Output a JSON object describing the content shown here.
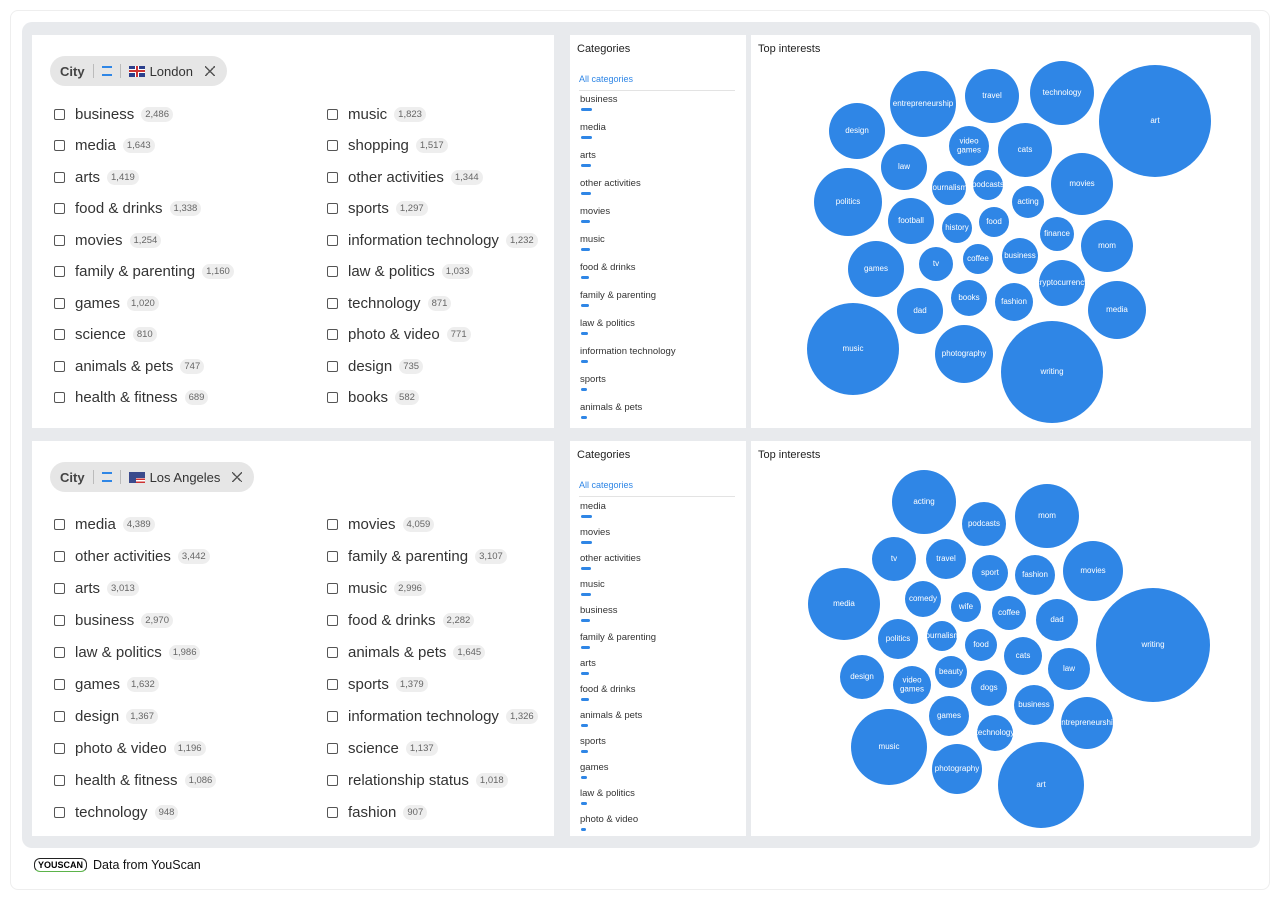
{
  "panels": [
    {
      "filter": {
        "label": "City",
        "value": "London"
      },
      "columns": [
        [
          {
            "name": "business",
            "count": "2,486"
          },
          {
            "name": "media",
            "count": "1,643"
          },
          {
            "name": "arts",
            "count": "1,419"
          },
          {
            "name": "food & drinks",
            "count": "1,338"
          },
          {
            "name": "movies",
            "count": "1,254"
          },
          {
            "name": "family & parenting",
            "count": "1,160"
          },
          {
            "name": "games",
            "count": "1,020"
          },
          {
            "name": "science",
            "count": "810"
          },
          {
            "name": "animals & pets",
            "count": "747"
          },
          {
            "name": "health & fitness",
            "count": "689"
          }
        ],
        [
          {
            "name": "music",
            "count": "1,823"
          },
          {
            "name": "shopping",
            "count": "1,517"
          },
          {
            "name": "other activities",
            "count": "1,344"
          },
          {
            "name": "sports",
            "count": "1,297"
          },
          {
            "name": "information technology",
            "count": "1,232"
          },
          {
            "name": "law & politics",
            "count": "1,033"
          },
          {
            "name": "technology",
            "count": "871"
          },
          {
            "name": "photo & video",
            "count": "771"
          },
          {
            "name": "design",
            "count": "735"
          },
          {
            "name": "books",
            "count": "582"
          }
        ]
      ],
      "categories": {
        "title": "Categories",
        "all": "All categories",
        "items": [
          "business",
          "media",
          "arts",
          "other activities",
          "movies",
          "music",
          "food & drinks",
          "family & parenting",
          "law & politics",
          "information technology",
          "sports",
          "animals & pets"
        ]
      },
      "top_interests": {
        "title": "Top interests",
        "bubbles": [
          "art",
          "technology",
          "travel",
          "entrepreneurship",
          "design",
          "video games",
          "cats",
          "law",
          "movies",
          "politics",
          "journalism",
          "podcasts",
          "acting",
          "football",
          "history",
          "food",
          "finance",
          "mom",
          "coffee",
          "business",
          "tv",
          "games",
          "cryptocurrency",
          "books",
          "fashion",
          "dad",
          "media",
          "music",
          "photography",
          "writing"
        ]
      }
    },
    {
      "filter": {
        "label": "City",
        "value": "Los Angeles"
      },
      "columns": [
        [
          {
            "name": "media",
            "count": "4,389"
          },
          {
            "name": "other activities",
            "count": "3,442"
          },
          {
            "name": "arts",
            "count": "3,013"
          },
          {
            "name": "business",
            "count": "2,970"
          },
          {
            "name": "law & politics",
            "count": "1,986"
          },
          {
            "name": "games",
            "count": "1,632"
          },
          {
            "name": "design",
            "count": "1,367"
          },
          {
            "name": "photo & video",
            "count": "1,196"
          },
          {
            "name": "health & fitness",
            "count": "1,086"
          },
          {
            "name": "technology",
            "count": "948"
          }
        ],
        [
          {
            "name": "movies",
            "count": "4,059"
          },
          {
            "name": "family & parenting",
            "count": "3,107"
          },
          {
            "name": "music",
            "count": "2,996"
          },
          {
            "name": "food & drinks",
            "count": "2,282"
          },
          {
            "name": "animals & pets",
            "count": "1,645"
          },
          {
            "name": "sports",
            "count": "1,379"
          },
          {
            "name": "information technology",
            "count": "1,326"
          },
          {
            "name": "science",
            "count": "1,137"
          },
          {
            "name": "relationship status",
            "count": "1,018"
          },
          {
            "name": "fashion",
            "count": "907"
          }
        ]
      ],
      "categories": {
        "title": "Categories",
        "all": "All categories",
        "items": [
          "media",
          "movies",
          "other activities",
          "music",
          "business",
          "family & parenting",
          "arts",
          "food & drinks",
          "animals & pets",
          "sports",
          "games",
          "law & politics",
          "photo & video"
        ]
      },
      "top_interests": {
        "title": "Top interests",
        "bubbles": [
          "acting",
          "podcasts",
          "mom",
          "tv",
          "travel",
          "sport",
          "fashion",
          "movies",
          "media",
          "comedy",
          "wife",
          "coffee",
          "dad",
          "writing",
          "politics",
          "journalism",
          "food",
          "cats",
          "law",
          "design",
          "beauty",
          "video games",
          "dogs",
          "business",
          "games",
          "entrepreneurship",
          "technology",
          "music",
          "photography",
          "art"
        ]
      }
    }
  ],
  "footer": {
    "logo": "YOUSCAN",
    "text": "Data from YouScan"
  }
}
